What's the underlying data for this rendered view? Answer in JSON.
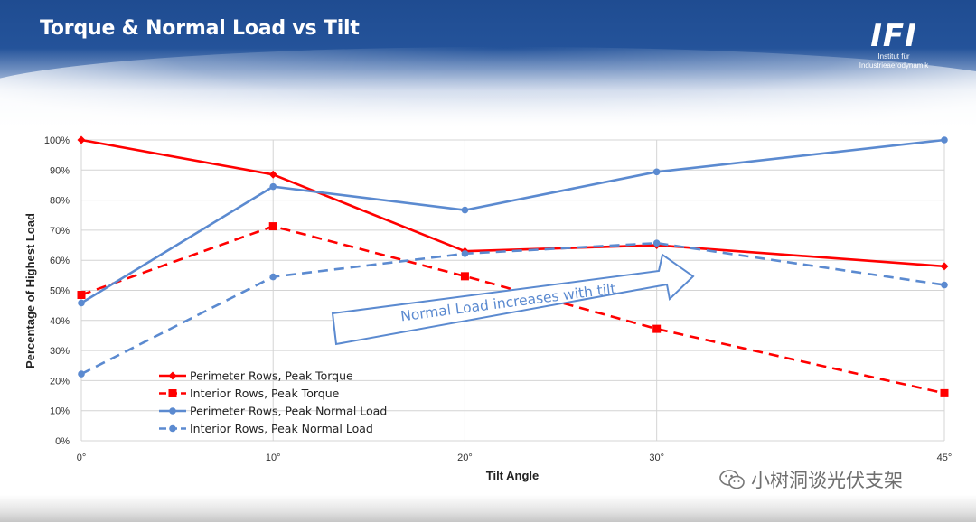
{
  "slide": {
    "title": "Torque & Normal Load vs Tilt",
    "logo": {
      "mark": "IFI",
      "line1": "Institut für",
      "line2": "Industrieaerodynamik"
    },
    "watermark": {
      "text": "小树洞谈光伏支架",
      "icon": "wechat-icon"
    }
  },
  "colors": {
    "red": "#ff0000",
    "blue": "#5b8ad0",
    "arrow_text": "#5b8ad0"
  },
  "chart_data": {
    "type": "line",
    "title": "",
    "xlabel": "Tilt Angle",
    "ylabel": "Percentage of Highest Load",
    "x": [
      0,
      10,
      20,
      30,
      45
    ],
    "x_tick_labels": [
      "0°",
      "10°",
      "20°",
      "30°",
      "45°"
    ],
    "ylim": [
      0,
      100
    ],
    "y_ticks": [
      0,
      10,
      20,
      30,
      40,
      50,
      60,
      70,
      80,
      90,
      100
    ],
    "y_tick_labels": [
      "0%",
      "10%",
      "20%",
      "30%",
      "40%",
      "50%",
      "60%",
      "70%",
      "80%",
      "90%",
      "100%"
    ],
    "grid": true,
    "legend_position": "bottom-left",
    "series": [
      {
        "name": "Perimeter Rows, Peak Torque",
        "values": [
          100,
          88.5,
          63,
          65,
          58
        ],
        "color": "#ff0000",
        "dash": "solid",
        "marker": "diamond"
      },
      {
        "name": "Interior Rows, Peak Torque",
        "values": [
          48.5,
          71.3,
          54.7,
          37.2,
          15.8
        ],
        "color": "#ff0000",
        "dash": "dashed",
        "marker": "square"
      },
      {
        "name": "Perimeter Rows, Peak Normal Load",
        "values": [
          45.8,
          84.5,
          76.7,
          89.4,
          100
        ],
        "color": "#5b8ad0",
        "dash": "solid",
        "marker": "circle"
      },
      {
        "name": "Interior Rows, Peak Normal Load",
        "values": [
          22.2,
          54.5,
          62.2,
          65.7,
          51.8
        ],
        "color": "#5b8ad0",
        "dash": "dashed",
        "marker": "circle"
      }
    ],
    "annotation": "Normal Load increases with tilt"
  }
}
